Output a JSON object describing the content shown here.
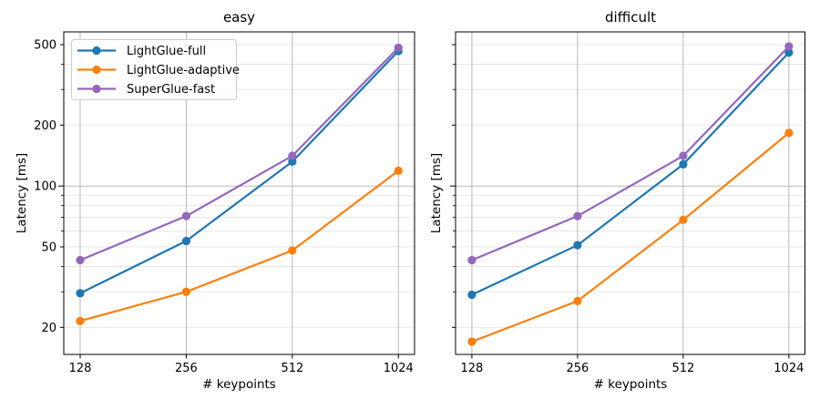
{
  "figure": {
    "background": "#ffffff",
    "text_color": "#000000"
  },
  "grid": {
    "major_color": "#b2b2b2",
    "minor_color": "#e5e5e5"
  },
  "axis": {
    "spine_color": "#000000",
    "tick_color": "#000000"
  },
  "legend": {
    "position": "upper-left",
    "border_color": "#cccccc",
    "background": "#ffffff",
    "entries": [
      {
        "label": "LightGlue-full",
        "color": "#1f77b4"
      },
      {
        "label": "LightGlue-adaptive",
        "color": "#ff7f0e"
      },
      {
        "label": "SuperGlue-fast",
        "color": "#9467bd"
      }
    ]
  },
  "chart_data": [
    {
      "type": "line",
      "title": "easy",
      "xlabel": "# keypoints",
      "ylabel": "Latency [ms]",
      "xscale": "log2",
      "yscale": "log10",
      "x": [
        128,
        256,
        512,
        1024
      ],
      "xticks": [
        128,
        256,
        512,
        1024
      ],
      "yticks": [
        20,
        50,
        100,
        200,
        500
      ],
      "minor_yticks": [
        30,
        40,
        60,
        70,
        80,
        90,
        300,
        400
      ],
      "xlim": [
        115,
        1138
      ],
      "ylim": [
        14.7,
        578
      ],
      "ytick_labels_visible": true,
      "show_legend": true,
      "grid": "both",
      "series": [
        {
          "name": "LightGlue-full",
          "color": "#1f77b4",
          "values": [
            29.5,
            53.5,
            132,
            465
          ]
        },
        {
          "name": "LightGlue-adaptive",
          "color": "#ff7f0e",
          "values": [
            21.5,
            30,
            48,
            119
          ]
        },
        {
          "name": "SuperGlue-fast",
          "color": "#9467bd",
          "values": [
            43,
            71,
            141,
            483
          ]
        }
      ]
    },
    {
      "type": "line",
      "title": "difficult",
      "xlabel": "# keypoints",
      "ylabel": "Latency [ms]",
      "xscale": "log2",
      "yscale": "log10",
      "x": [
        128,
        256,
        512,
        1024
      ],
      "xticks": [
        128,
        256,
        512,
        1024
      ],
      "yticks": [
        20,
        50,
        100,
        200,
        500
      ],
      "minor_yticks": [
        30,
        40,
        60,
        70,
        80,
        90,
        300,
        400
      ],
      "xlim": [
        115,
        1138
      ],
      "ylim": [
        14.7,
        578
      ],
      "ytick_labels_visible": false,
      "show_legend": false,
      "grid": "both",
      "series": [
        {
          "name": "LightGlue-full",
          "color": "#1f77b4",
          "values": [
            29,
            51,
            128,
            457
          ]
        },
        {
          "name": "LightGlue-adaptive",
          "color": "#ff7f0e",
          "values": [
            17,
            27,
            68,
            183
          ]
        },
        {
          "name": "SuperGlue-fast",
          "color": "#9467bd",
          "values": [
            43,
            71,
            141,
            490
          ]
        }
      ]
    }
  ]
}
